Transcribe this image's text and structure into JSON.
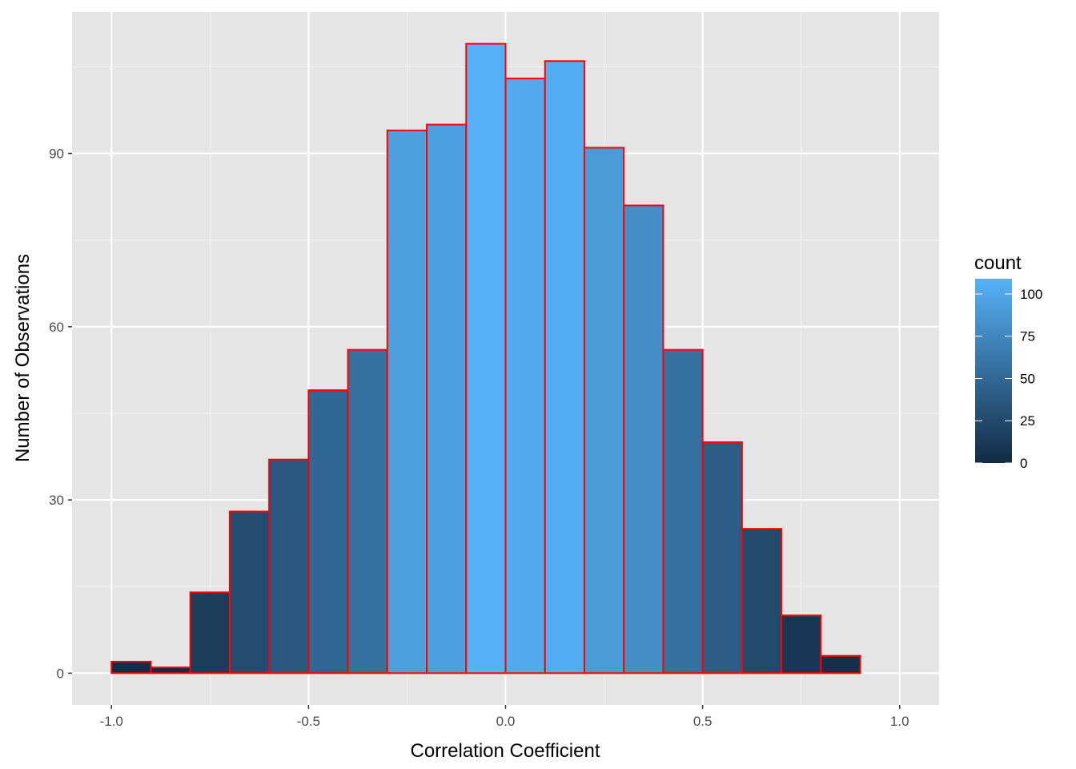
{
  "chart_data": {
    "type": "bar",
    "subtype": "histogram",
    "title": "",
    "xlabel": "Correlation Coefficient",
    "ylabel": "Number of Observations",
    "xlim": [
      -1.1,
      1.1
    ],
    "ylim": [
      -5.5,
      114.5
    ],
    "x_ticks": [
      -1.0,
      -0.5,
      0.0,
      0.5,
      1.0
    ],
    "x_tick_labels": [
      "-1.0",
      "-0.5",
      "0.0",
      "0.5",
      "1.0"
    ],
    "y_ticks": [
      0,
      30,
      60,
      90
    ],
    "y_tick_labels": [
      "0",
      "30",
      "60",
      "90"
    ],
    "bin_width": 0.1,
    "bins": [
      {
        "start": -1.0,
        "end": -0.9,
        "count": 2
      },
      {
        "start": -0.9,
        "end": -0.8,
        "count": 1
      },
      {
        "start": -0.8,
        "end": -0.7,
        "count": 14
      },
      {
        "start": -0.7,
        "end": -0.6,
        "count": 28
      },
      {
        "start": -0.6,
        "end": -0.5,
        "count": 37
      },
      {
        "start": -0.5,
        "end": -0.4,
        "count": 49
      },
      {
        "start": -0.4,
        "end": -0.3,
        "count": 56
      },
      {
        "start": -0.3,
        "end": -0.2,
        "count": 94
      },
      {
        "start": -0.2,
        "end": -0.1,
        "count": 95
      },
      {
        "start": -0.1,
        "end": 0.0,
        "count": 109
      },
      {
        "start": 0.0,
        "end": 0.1,
        "count": 103
      },
      {
        "start": 0.1,
        "end": 0.2,
        "count": 106
      },
      {
        "start": 0.2,
        "end": 0.3,
        "count": 91
      },
      {
        "start": 0.3,
        "end": 0.4,
        "count": 81
      },
      {
        "start": 0.4,
        "end": 0.5,
        "count": 56
      },
      {
        "start": 0.5,
        "end": 0.6,
        "count": 40
      },
      {
        "start": 0.6,
        "end": 0.7,
        "count": 25
      },
      {
        "start": 0.7,
        "end": 0.8,
        "count": 10
      },
      {
        "start": 0.8,
        "end": 0.9,
        "count": 3
      },
      {
        "start": 0.9,
        "end": 1.0,
        "count": 0
      }
    ],
    "grid": true,
    "bar_outline_color": "#ff0000",
    "colors": {
      "panel_background": "#e5e5e5",
      "grid_major": "#ffffff",
      "grid_minor": "#f2f2f2",
      "gradient_low": "#132b43",
      "gradient_high": "#56b1f7"
    },
    "legend": {
      "title": "count",
      "placement": "right",
      "range": [
        0,
        109
      ],
      "ticks": [
        0,
        25,
        50,
        75,
        100
      ],
      "tick_labels": [
        "0",
        "25",
        "50",
        "75",
        "100"
      ]
    }
  }
}
